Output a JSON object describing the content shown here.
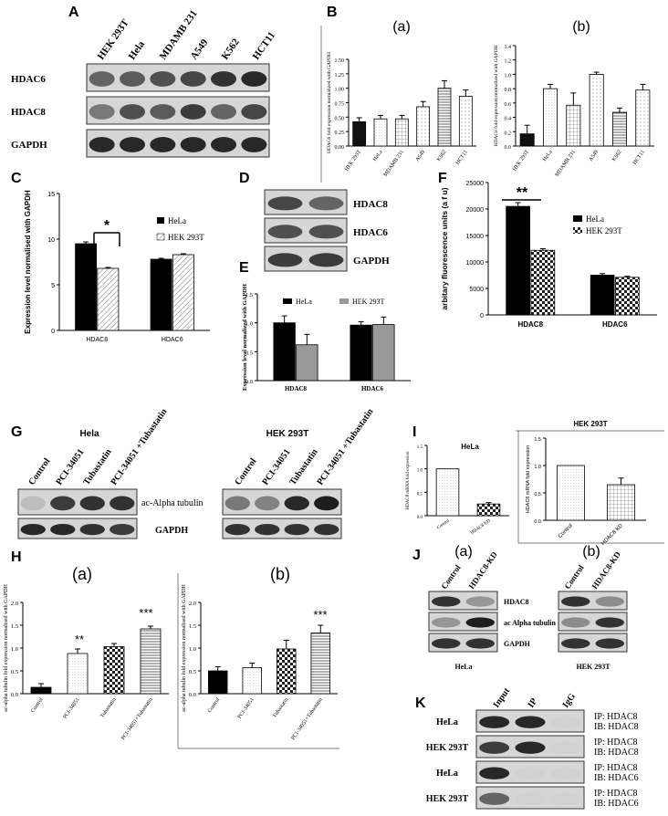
{
  "panels": {
    "A": {
      "letter": "A",
      "lanes": [
        "HEK 293T",
        "Hela",
        "MDAMB 231",
        "A549",
        "K562",
        "HCT11"
      ],
      "rows": [
        "HDAC6",
        "HDAC8",
        "GAPDH"
      ]
    },
    "B": {
      "letter": "B",
      "a": {
        "sub": "(a)",
        "ylabel": "HDAC6 fold expression normalized with GAPDH"
      },
      "b": {
        "sub": "(b)",
        "ylabel": "HDAC8 fold expression normalized with GAPDH"
      }
    },
    "C": {
      "letter": "C",
      "ylabel": "Expression level normalised with GAPDH",
      "legend": [
        "HeLa",
        "HEK 293T"
      ],
      "sig": "*"
    },
    "D": {
      "letter": "D",
      "rows": [
        "HDAC8",
        "HDAC6",
        "GAPDH"
      ]
    },
    "E": {
      "letter": "E",
      "ylabel": "Expression level normalized with GAPDH",
      "legend": [
        "HeLa",
        "HEK 293T"
      ]
    },
    "F": {
      "letter": "F",
      "ylabel": "arbitary fluorescence units (a f u)",
      "legend": [
        "HeLa",
        "HEK 293T"
      ],
      "sig": "**"
    },
    "G": {
      "letter": "G",
      "left_title": "Hela",
      "right_title": "HEK 293T",
      "lanes": [
        "Control",
        "PCI-34051",
        "Tubastatin",
        "PCI-34051 +Tubastatin"
      ],
      "lanes_right": [
        "Control",
        "PCI-34051",
        "Tubastatin",
        "PCI-34051 +Tubastatin"
      ],
      "rows": [
        "ac-Alpha tubulin",
        "GAPDH"
      ]
    },
    "H": {
      "letter": "H",
      "a": {
        "sub": "(a)",
        "ylabel": "ac-alpha tubulin fold expression normalised with GAPDH",
        "sig": [
          "**",
          "***"
        ]
      },
      "b": {
        "sub": "(b)",
        "ylabel": "ac-alpha tubulin fold expression normalised with GAPDH",
        "sig": "***"
      }
    },
    "I": {
      "letter": "I",
      "left_title": "HeLa",
      "right_title": "HEK 293T",
      "ylabel": "HDAC8 mRNA fold expression",
      "categories": [
        "Control",
        "HDAC8 KD"
      ]
    },
    "J": {
      "letter": "J",
      "sub_a": "(a)",
      "sub_b": "(b)",
      "lanes": [
        "Control",
        "HDAC8-KD"
      ],
      "rows": [
        "HDAC8",
        "ac Alpha tubulin",
        "GAPDH"
      ],
      "cells": [
        "HeLa",
        "HEK 293T"
      ]
    },
    "K": {
      "letter": "K",
      "lanes": [
        "Input",
        "IP",
        "IgG"
      ],
      "rows": [
        {
          "cell": "HeLa",
          "ip": "IP: HDAC8",
          "ib": "IB: HDAC8"
        },
        {
          "cell": "HEK 293T",
          "ip": "IP: HDAC8",
          "ib": "IB: HDAC8"
        },
        {
          "cell": "HeLa",
          "ip": "IP: HDAC8",
          "ib": "IB: HDAC6"
        },
        {
          "cell": "HEK 293T",
          "ip": "IP: HDAC8",
          "ib": "IB: HDAC6"
        }
      ]
    }
  },
  "chart_data": [
    {
      "id": "B-a",
      "type": "bar",
      "categories": [
        "HEK 293T",
        "HeLa",
        "MDAMB 231",
        "A549",
        "K562",
        "HCT11"
      ],
      "values": [
        0.42,
        0.47,
        0.47,
        0.68,
        1.0,
        0.86
      ],
      "errors": [
        0.07,
        0.06,
        0.06,
        0.09,
        0.13,
        0.11
      ],
      "ylim": [
        0,
        1.5
      ],
      "yticks": [
        "0.00",
        "0.25",
        "0.50",
        "0.75",
        "1.00",
        "1.25",
        "1.50"
      ],
      "ylabel": "HDAC6 fold expression normalized with GAPDH"
    },
    {
      "id": "B-b",
      "type": "bar",
      "categories": [
        "HEK 293T",
        "HeLa",
        "MDAMB 231",
        "A549",
        "K562",
        "HCT11"
      ],
      "values": [
        0.17,
        0.8,
        0.57,
        1.0,
        0.47,
        0.78
      ],
      "errors": [
        0.12,
        0.06,
        0.17,
        0.03,
        0.06,
        0.08
      ],
      "ylim": [
        0,
        1.4
      ],
      "yticks": [
        "0.0",
        "0.2",
        "0.4",
        "0.6",
        "0.8",
        "1.0",
        "1.2",
        "1.4"
      ],
      "ylabel": "HDAC8 fold expression normalized with GAPDH"
    },
    {
      "id": "C",
      "type": "bar",
      "categories": [
        "HDAC8",
        "HDAC6"
      ],
      "series": [
        {
          "name": "HeLa",
          "values": [
            9.5,
            7.8
          ],
          "errors": [
            0.2,
            0.1
          ]
        },
        {
          "name": "HEK 293T",
          "values": [
            6.8,
            8.3
          ],
          "errors": [
            0.1,
            0.1
          ]
        }
      ],
      "ylim": [
        0,
        15
      ],
      "yticks": [
        "0",
        "5",
        "10",
        "15"
      ],
      "ylabel": "Expression level normalised with GAPDH"
    },
    {
      "id": "E",
      "type": "bar",
      "categories": [
        "HDAC8",
        "HDAC6"
      ],
      "series": [
        {
          "name": "HeLa",
          "values": [
            1.0,
            0.96
          ],
          "errors": [
            0.12,
            0.06
          ]
        },
        {
          "name": "HEK 293T",
          "values": [
            0.62,
            0.97
          ],
          "errors": [
            0.18,
            0.13
          ]
        }
      ],
      "ylim": [
        0,
        1.5
      ],
      "yticks": [
        "0.0",
        "0.5",
        "1.0",
        "1.5"
      ],
      "ylabel": "Expression level normalized with GAPDH"
    },
    {
      "id": "F",
      "type": "bar",
      "categories": [
        "HDAC8",
        "HDAC6"
      ],
      "series": [
        {
          "name": "HeLa",
          "values": [
            20500,
            7500
          ],
          "errors": [
            700,
            300
          ]
        },
        {
          "name": "HEK 293T",
          "values": [
            12200,
            7100
          ],
          "errors": [
            300,
            200
          ]
        }
      ],
      "ylim": [
        0,
        25000
      ],
      "yticks": [
        "0",
        "5000",
        "10000",
        "15000",
        "20000",
        "25000"
      ],
      "ylabel": "arbitary fluorescence units (a f u)"
    },
    {
      "id": "H-a",
      "type": "bar",
      "categories": [
        "Control",
        "PCI-34051",
        "Tubastatin",
        "PCI-34051+Tubastatin"
      ],
      "values": [
        0.14,
        0.88,
        1.03,
        1.42
      ],
      "errors": [
        0.08,
        0.1,
        0.07,
        0.06
      ],
      "ylim": [
        0,
        2.0
      ],
      "yticks": [
        "0.0",
        "0.5",
        "1.0",
        "1.5",
        "2.0"
      ],
      "ylabel": "ac-alpha tubulin fold expression normalised with GAPDH"
    },
    {
      "id": "H-b",
      "type": "bar",
      "categories": [
        "Control",
        "PCI-34051",
        "Tubastatin",
        "PCI-34051+Tubastatin"
      ],
      "values": [
        0.5,
        0.57,
        0.98,
        1.33
      ],
      "errors": [
        0.09,
        0.1,
        0.19,
        0.17
      ],
      "ylim": [
        0,
        2.0
      ],
      "yticks": [
        "0.0",
        "0.5",
        "1.0",
        "1.5",
        "2.0"
      ],
      "ylabel": "ac-alpha tubulin fold expression normalised with GAPDH"
    },
    {
      "id": "I-left",
      "type": "bar",
      "categories": [
        "Control",
        "HDAC8 KD"
      ],
      "values": [
        1.0,
        0.25
      ],
      "errors": [
        0,
        0.03
      ],
      "ylim": [
        0,
        1.5
      ],
      "yticks": [
        "0.0",
        "0.5",
        "1.0",
        "1.5"
      ],
      "ylabel": "HDAC8 mRNA fold expression"
    },
    {
      "id": "I-right",
      "type": "bar",
      "categories": [
        "Control",
        "HDAC8 KD"
      ],
      "values": [
        1.0,
        0.65
      ],
      "errors": [
        0,
        0.12
      ],
      "ylim": [
        0,
        1.5
      ],
      "yticks": [
        "0.0",
        "0.5",
        "1.0",
        "1.5"
      ],
      "ylabel": "HDAC8 mRNA fold expression"
    }
  ]
}
